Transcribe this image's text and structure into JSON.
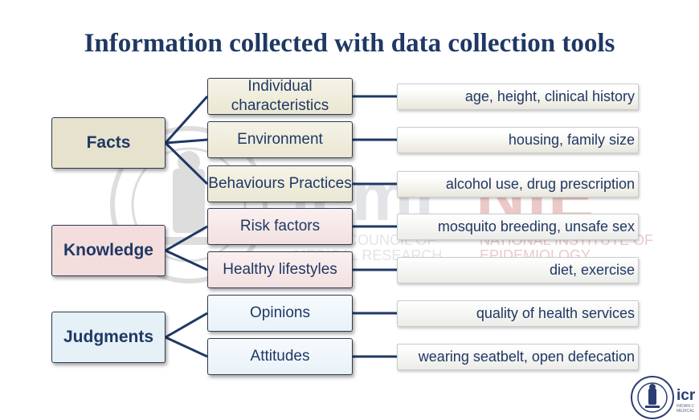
{
  "title": "Information collected with data collection tools",
  "watermark": {
    "brand_left": "icmr",
    "brand_right": "NIE",
    "org_left_line1": "INDIAN COUNCIL OF",
    "org_left_line2": "MEDICAL RESEARCH",
    "org_right_line1": "NATIONAL INSTITUTE OF",
    "org_right_line2": "EPIDEMIOLOGY"
  },
  "categories": [
    {
      "label": "Facts",
      "color": "#e6e2cd"
    },
    {
      "label": "Knowledge",
      "color": "#f3dddd"
    },
    {
      "label": "Judgments",
      "color": "#e5f0f7"
    }
  ],
  "items": [
    {
      "label": "Individual characteristics",
      "example": "age, height, clinical history"
    },
    {
      "label": "Environment",
      "example": "housing, family size"
    },
    {
      "label": "Behaviours Practices",
      "example": "alcohol use, drug prescription"
    },
    {
      "label": "Risk factors",
      "example": "mosquito breeding, unsafe sex"
    },
    {
      "label": "Healthy lifestyles",
      "example": "diet, exercise"
    },
    {
      "label": "Opinions",
      "example": "quality of health services"
    },
    {
      "label": "Attitudes",
      "example": "wearing seatbelt, open defecation"
    }
  ],
  "footer_logo": {
    "word": "icr",
    "small_line1": "INDIAN C",
    "small_line2": "MEDICAL"
  },
  "colors": {
    "title": "#1f3864",
    "connector": "#1f3864",
    "box_text": "#1f3864"
  }
}
